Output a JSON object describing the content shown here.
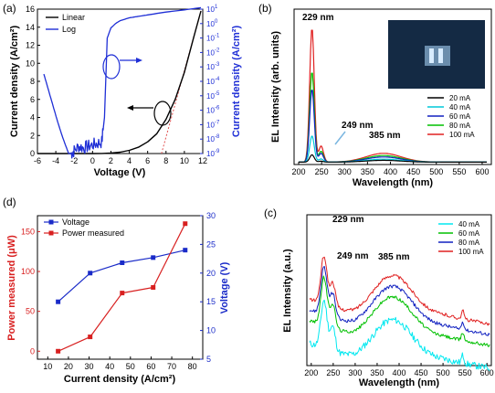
{
  "chart_data": [
    {
      "panel": "(a)",
      "type": "line",
      "xlabel": "Voltage (V)",
      "ylabel": "Current density (A/cm²)",
      "y2label": "Current density (A/cm²)",
      "xlim": [
        -6,
        12
      ],
      "xticks": [
        "-6",
        "-4",
        "-2",
        "0",
        "2",
        "4",
        "6",
        "8",
        "10",
        "12"
      ],
      "ylim": [
        0,
        16
      ],
      "yticks": [
        "0",
        "2",
        "4",
        "6",
        "8",
        "10",
        "12",
        "14",
        "16"
      ],
      "y2log": true,
      "y2lim": [
        -9,
        1
      ],
      "y2ticks": [
        {
          "base": "10",
          "exp": "1"
        },
        {
          "base": "10",
          "exp": "0"
        },
        {
          "base": "10",
          "exp": "-1"
        },
        {
          "base": "10",
          "exp": "-2"
        },
        {
          "base": "10",
          "exp": "-3"
        },
        {
          "base": "10",
          "exp": "-4"
        },
        {
          "base": "10",
          "exp": "-5"
        },
        {
          "base": "10",
          "exp": "-6"
        },
        {
          "base": "10",
          "exp": "-7"
        },
        {
          "base": "10",
          "exp": "-8"
        },
        {
          "base": "10",
          "exp": "-9"
        }
      ],
      "legend": [
        "Linear",
        "Log"
      ],
      "colors": {
        "linear": "#000000",
        "log": "#1f2fd6",
        "fit": "#e05050"
      },
      "series": [
        {
          "name": "Linear",
          "axis": "left",
          "x": [
            -6,
            -2,
            0,
            1,
            2,
            3,
            4,
            5,
            6,
            7,
            8,
            9,
            10,
            11,
            11.8
          ],
          "y": [
            0,
            0,
            0,
            0.01,
            0.05,
            0.15,
            0.35,
            0.7,
            1.3,
            2.2,
            3.8,
            6,
            9,
            12.8,
            15.8
          ]
        },
        {
          "name": "Log",
          "axis": "right",
          "x": [
            -5.3,
            -4.8,
            -4.3,
            -3.8,
            -3.3,
            -2.9,
            -2.6,
            -2.3,
            -2.0,
            -1.5,
            -1.0,
            -0.5,
            0,
            0.5,
            1.0,
            1.3,
            1.6,
            2.0,
            2.5,
            3,
            4,
            5,
            6,
            8,
            10,
            11.8
          ],
          "y": [
            -3.5,
            -4.6,
            -5.7,
            -6.8,
            -7.8,
            -8.5,
            -9,
            -9,
            -8.8,
            -8.5,
            -8.6,
            -8.5,
            -8.4,
            -8.3,
            -8.2,
            -6.5,
            -1,
            -0.3,
            0,
            0.2,
            0.4,
            0.5,
            0.6,
            0.8,
            0.95,
            1.1
          ]
        }
      ],
      "fit_line": {
        "x": [
          7.5,
          11.8
        ],
        "y": [
          0,
          15.8
        ]
      }
    },
    {
      "panel": "(b)",
      "type": "line",
      "xlabel": "Wavelength (nm)",
      "ylabel": "EL Intensity (arb. units)",
      "xlim": [
        190,
        620
      ],
      "xticks": [
        "200",
        "250",
        "300",
        "350",
        "400",
        "450",
        "500",
        "550",
        "600"
      ],
      "annotations": [
        "229 nm",
        "249 nm",
        "385 nm"
      ],
      "legend_position": "right",
      "series": [
        {
          "name": "20 mA",
          "color": "#000000",
          "peak": 0.05,
          "broad": 0.012
        },
        {
          "name": "40 mA",
          "color": "#00c8d8",
          "peak": 0.18,
          "broad": 0.02
        },
        {
          "name": "60 mA",
          "color": "#1020c0",
          "peak": 0.5,
          "broad": 0.035
        },
        {
          "name": "80 mA",
          "color": "#00c000",
          "peak": 0.62,
          "broad": 0.045
        },
        {
          "name": "100 mA",
          "color": "#e02020",
          "peak": 0.92,
          "broad": 0.06
        }
      ]
    },
    {
      "panel": "(c)",
      "type": "line",
      "xlabel": "Wavelength (nm)",
      "ylabel": "EL Intensity (a.u.)",
      "xlim": [
        190,
        610
      ],
      "xticks": [
        "200",
        "250",
        "300",
        "350",
        "400",
        "450",
        "500",
        "550",
        "600"
      ],
      "annotations": [
        "229 nm",
        "249 nm",
        "385 nm"
      ],
      "legend_position": "top-right",
      "series": [
        {
          "name": "40 mA",
          "color": "#00e8f0",
          "offset": 0.0
        },
        {
          "name": "60 mA",
          "color": "#00c000",
          "offset": 0.17
        },
        {
          "name": "80 mA",
          "color": "#1020c0",
          "offset": 0.25
        },
        {
          "name": "100 mA",
          "color": "#e02020",
          "offset": 0.33
        }
      ]
    },
    {
      "panel": "(d)",
      "type": "line",
      "xlabel": "Current density (A/cm²)",
      "ylabel": "Power measured (μW)",
      "y2label": "Voltage (V)",
      "xlim": [
        5,
        85
      ],
      "xticks": [
        "10",
        "20",
        "30",
        "40",
        "50",
        "60",
        "70",
        "80"
      ],
      "ylim": [
        -10,
        170
      ],
      "yticks": [
        "0",
        "50",
        "100",
        "150"
      ],
      "y2lim": [
        5,
        30
      ],
      "y2ticks": [
        "5",
        "10",
        "15",
        "20",
        "25",
        "30"
      ],
      "legend": [
        "Voltage",
        "Power measured"
      ],
      "series": [
        {
          "name": "Voltage",
          "axis": "right",
          "color": "#1a2bc8",
          "x": [
            15,
            30.5,
            46,
            61,
            76.5
          ],
          "y": [
            15,
            20,
            21.8,
            22.7,
            24
          ]
        },
        {
          "name": "Power measured",
          "axis": "left",
          "color": "#d82020",
          "x": [
            15,
            30.5,
            46,
            61,
            76.5
          ],
          "y": [
            0,
            18,
            73,
            80,
            160
          ]
        }
      ]
    }
  ]
}
